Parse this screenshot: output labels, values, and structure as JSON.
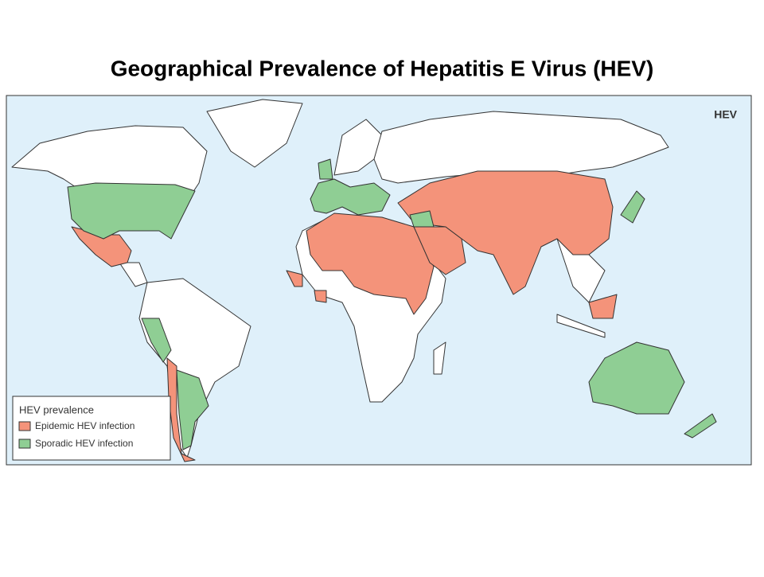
{
  "title": "Geographical Prevalence of Hepatitis E Virus (HEV)",
  "map": {
    "label": "HEV",
    "legend": {
      "title": "HEV prevalence",
      "items": [
        {
          "label": "Epidemic HEV infection",
          "color": "#f4937a"
        },
        {
          "label": "Sporadic HEV infection",
          "color": "#8fce94"
        }
      ]
    }
  }
}
